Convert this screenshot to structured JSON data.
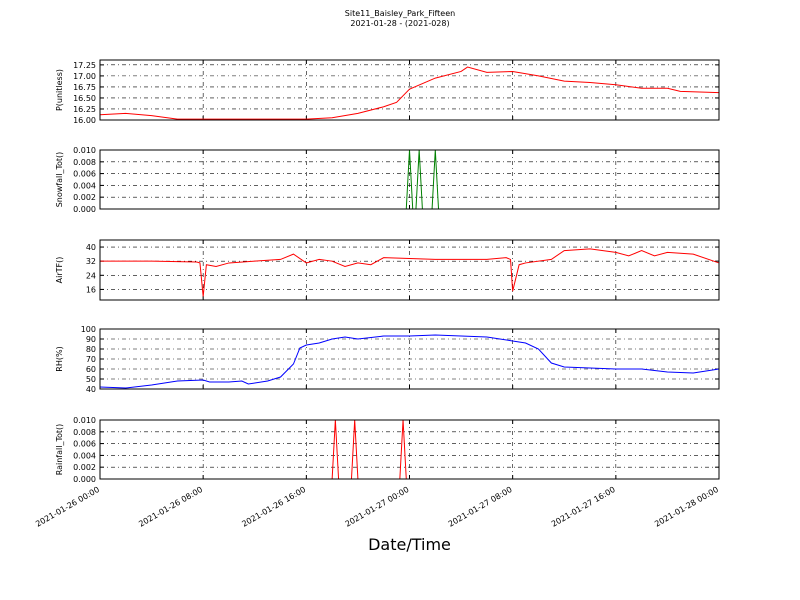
{
  "chart_data": [
    {
      "type": "line",
      "title": "Site11_Baisley_Park_Fifteen",
      "subtitle": "2021-01-28 - (2021-028)",
      "y_label": "P(unitless)",
      "grid": true,
      "xlim": [
        "2021-01-26 00:00",
        "2021-01-28 00:00"
      ],
      "xticks": [
        "2021-01-26 00:00",
        "2021-01-26 08:00",
        "2021-01-26 16:00",
        "2021-01-27 00:00",
        "2021-01-27 08:00",
        "2021-01-27 16:00",
        "2021-01-28 00:00"
      ],
      "ylim": [
        16.0,
        17.36
      ],
      "yticks": [
        {
          "value": 16.0,
          "label": "16.00"
        },
        {
          "value": 16.25,
          "label": "16.25"
        },
        {
          "value": 16.5,
          "label": "16.50"
        },
        {
          "value": 16.75,
          "label": "16.75"
        },
        {
          "value": 17.0,
          "label": "17.00"
        },
        {
          "value": 17.25,
          "label": "17.25"
        }
      ],
      "x": [
        "2021-01-26 00:00",
        "2021-01-26 02:00",
        "2021-01-26 04:00",
        "2021-01-26 06:00",
        "2021-01-26 12:00",
        "2021-01-26 16:00",
        "2021-01-26 18:00",
        "2021-01-26 20:00",
        "2021-01-26 22:00",
        "2021-01-26 23:00",
        "2021-01-27 00:00",
        "2021-01-27 02:00",
        "2021-01-27 04:00",
        "2021-01-27 04:30",
        "2021-01-27 06:00",
        "2021-01-27 08:00",
        "2021-01-27 10:00",
        "2021-01-27 12:00",
        "2021-01-27 14:00",
        "2021-01-27 16:00",
        "2021-01-27 18:00",
        "2021-01-27 20:00",
        "2021-01-27 21:00",
        "2021-01-28 00:00"
      ],
      "series": [
        {
          "name": "P",
          "color": "#ff0000",
          "values": [
            16.12,
            16.15,
            16.1,
            16.02,
            16.02,
            16.02,
            16.05,
            16.15,
            16.3,
            16.4,
            16.7,
            16.95,
            17.1,
            17.2,
            17.08,
            17.1,
            17.0,
            16.88,
            16.85,
            16.8,
            16.72,
            16.72,
            16.65,
            16.62
          ]
        }
      ]
    },
    {
      "type": "line",
      "y_label": "Snowfall_Tot()",
      "grid": true,
      "xlim": [
        "2021-01-26 00:00",
        "2021-01-28 00:00"
      ],
      "xticks": [
        "2021-01-26 00:00",
        "2021-01-26 08:00",
        "2021-01-26 16:00",
        "2021-01-27 00:00",
        "2021-01-27 08:00",
        "2021-01-27 16:00",
        "2021-01-28 00:00"
      ],
      "ylim": [
        0,
        0.01
      ],
      "yticks": [
        {
          "value": 0,
          "label": "0.000"
        },
        {
          "value": 0.002,
          "label": "0.002"
        },
        {
          "value": 0.004,
          "label": "0.004"
        },
        {
          "value": 0.006,
          "label": "0.006"
        },
        {
          "value": 0.008,
          "label": "0.008"
        },
        {
          "value": 0.01,
          "label": "0.010"
        }
      ],
      "x": [
        "2021-01-26 00:00",
        "2021-01-26 23:45",
        "2021-01-27 00:00",
        "2021-01-27 00:15",
        "2021-01-27 00:30",
        "2021-01-27 00:45",
        "2021-01-27 01:00",
        "2021-01-27 01:45",
        "2021-01-27 02:00",
        "2021-01-27 02:15",
        "2021-01-28 00:00"
      ],
      "series": [
        {
          "name": "Snowfall_Tot",
          "color": "#008000",
          "values": [
            0,
            0,
            0.01,
            0,
            0,
            0.01,
            0,
            0,
            0.01,
            0,
            0
          ]
        }
      ]
    },
    {
      "type": "line",
      "y_label": "AirTF()",
      "grid": true,
      "xlim": [
        "2021-01-26 00:00",
        "2021-01-28 00:00"
      ],
      "xticks": [
        "2021-01-26 00:00",
        "2021-01-26 08:00",
        "2021-01-26 16:00",
        "2021-01-27 00:00",
        "2021-01-27 08:00",
        "2021-01-27 16:00",
        "2021-01-28 00:00"
      ],
      "ylim": [
        10,
        44
      ],
      "yticks": [
        16,
        24,
        32,
        40
      ],
      "x": [
        "2021-01-26 00:00",
        "2021-01-26 04:00",
        "2021-01-26 07:30",
        "2021-01-26 07:45",
        "2021-01-26 08:00",
        "2021-01-26 08:15",
        "2021-01-26 09:00",
        "2021-01-26 10:00",
        "2021-01-26 12:00",
        "2021-01-26 14:00",
        "2021-01-26 15:00",
        "2021-01-26 16:00",
        "2021-01-26 17:00",
        "2021-01-26 18:00",
        "2021-01-26 19:00",
        "2021-01-26 20:00",
        "2021-01-26 21:00",
        "2021-01-26 22:00",
        "2021-01-27 00:00",
        "2021-01-27 02:00",
        "2021-01-27 06:00",
        "2021-01-27 07:30",
        "2021-01-27 07:50",
        "2021-01-27 08:00",
        "2021-01-27 08:30",
        "2021-01-27 09:00",
        "2021-01-27 11:00",
        "2021-01-27 12:00",
        "2021-01-27 14:00",
        "2021-01-27 16:00",
        "2021-01-27 17:00",
        "2021-01-27 18:00",
        "2021-01-27 19:00",
        "2021-01-27 20:00",
        "2021-01-27 22:00",
        "2021-01-28 00:00"
      ],
      "series": [
        {
          "name": "AirTF",
          "color": "#ff0000",
          "values": [
            32,
            32,
            31.5,
            31,
            12,
            30,
            29,
            31,
            32,
            33,
            36,
            31,
            33,
            32,
            29,
            31,
            30,
            34,
            33.5,
            33,
            33,
            34,
            33,
            15,
            30,
            31,
            33,
            38,
            39,
            37,
            35,
            38,
            35,
            37,
            36,
            31
          ]
        }
      ]
    },
    {
      "type": "line",
      "y_label": "RH(%)",
      "grid": true,
      "xlim": [
        "2021-01-26 00:00",
        "2021-01-28 00:00"
      ],
      "xticks": [
        "2021-01-26 00:00",
        "2021-01-26 08:00",
        "2021-01-26 16:00",
        "2021-01-27 00:00",
        "2021-01-27 08:00",
        "2021-01-27 16:00",
        "2021-01-28 00:00"
      ],
      "ylim": [
        40,
        100
      ],
      "yticks": [
        40,
        50,
        60,
        70,
        80,
        90,
        100
      ],
      "x": [
        "2021-01-26 00:00",
        "2021-01-26 02:00",
        "2021-01-26 04:00",
        "2021-01-26 06:00",
        "2021-01-26 08:00",
        "2021-01-26 08:30",
        "2021-01-26 10:00",
        "2021-01-26 11:00",
        "2021-01-26 11:30",
        "2021-01-26 13:00",
        "2021-01-26 14:00",
        "2021-01-26 15:00",
        "2021-01-26 15:30",
        "2021-01-26 16:00",
        "2021-01-26 17:00",
        "2021-01-26 18:00",
        "2021-01-26 19:00",
        "2021-01-26 20:00",
        "2021-01-26 22:00",
        "2021-01-27 00:00",
        "2021-01-27 02:00",
        "2021-01-27 04:00",
        "2021-01-27 06:00",
        "2021-01-27 08:00",
        "2021-01-27 09:00",
        "2021-01-27 10:00",
        "2021-01-27 11:00",
        "2021-01-27 12:00",
        "2021-01-27 14:00",
        "2021-01-27 16:00",
        "2021-01-27 18:00",
        "2021-01-27 20:00",
        "2021-01-27 22:00",
        "2021-01-28 00:00"
      ],
      "series": [
        {
          "name": "RH",
          "color": "#0000ff",
          "values": [
            42,
            41,
            44,
            48,
            49,
            47,
            47,
            48,
            45,
            48,
            52,
            65,
            81,
            84,
            86,
            90,
            92,
            90,
            93,
            93,
            94,
            93,
            92,
            88,
            86,
            80,
            66,
            62,
            61,
            60,
            60,
            57,
            56,
            60
          ]
        }
      ]
    },
    {
      "type": "line",
      "y_label": "Rainfall_Tot()",
      "x_label": "Date/Time",
      "grid": true,
      "xlim": [
        "2021-01-26 00:00",
        "2021-01-28 00:00"
      ],
      "xticks": [
        "2021-01-26 00:00",
        "2021-01-26 08:00",
        "2021-01-26 16:00",
        "2021-01-27 00:00",
        "2021-01-27 08:00",
        "2021-01-27 16:00",
        "2021-01-28 00:00"
      ],
      "ylim": [
        0,
        0.01
      ],
      "yticks": [
        {
          "value": 0,
          "label": "0.000"
        },
        {
          "value": 0.002,
          "label": "0.002"
        },
        {
          "value": 0.004,
          "label": "0.004"
        },
        {
          "value": 0.006,
          "label": "0.006"
        },
        {
          "value": 0.008,
          "label": "0.008"
        },
        {
          "value": 0.01,
          "label": "0.010"
        }
      ],
      "x": [
        "2021-01-26 00:00",
        "2021-01-26 18:00",
        "2021-01-26 18:15",
        "2021-01-26 18:30",
        "2021-01-26 19:30",
        "2021-01-26 19:45",
        "2021-01-26 20:00",
        "2021-01-26 23:15",
        "2021-01-26 23:30",
        "2021-01-26 23:45",
        "2021-01-28 00:00"
      ],
      "series": [
        {
          "name": "Rainfall_Tot",
          "color": "#ff0000",
          "values": [
            0,
            0,
            0.01,
            0,
            0,
            0.01,
            0,
            0,
            0.01,
            0,
            0
          ]
        }
      ]
    }
  ]
}
